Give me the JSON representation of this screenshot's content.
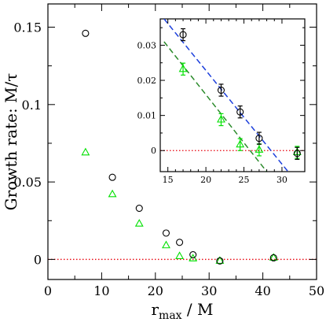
{
  "chart_data": [
    {
      "type": "scatter",
      "role": "main",
      "xlabel_main": "r",
      "xlabel_sub": "max",
      "xlabel_suffix": " / M",
      "ylabel": "Growth rate:  M/τ",
      "xlim": [
        0,
        50
      ],
      "ylim": [
        -0.013,
        0.165
      ],
      "x_ticks": [
        0,
        10,
        20,
        30,
        40,
        50
      ],
      "y_ticks": [
        0,
        0.05,
        0.1,
        0.15
      ],
      "y_tick_labels": [
        "0",
        "0.05",
        "0.1",
        "0.15"
      ],
      "reference_line": {
        "y": 0,
        "color": "#e8000b",
        "style": "dotted"
      },
      "series": [
        {
          "marker": "circle",
          "color": "#000000",
          "points": [
            {
              "x": 7,
              "y": 0.146
            },
            {
              "x": 12,
              "y": 0.053
            },
            {
              "x": 17,
              "y": 0.033
            },
            {
              "x": 22,
              "y": 0.017
            },
            {
              "x": 24.5,
              "y": 0.011
            },
            {
              "x": 27,
              "y": 0.003
            },
            {
              "x": 32,
              "y": -0.001
            },
            {
              "x": 42,
              "y": 0.001
            }
          ]
        },
        {
          "marker": "triangle",
          "color": "#00e000",
          "points": [
            {
              "x": 7,
              "y": 0.069
            },
            {
              "x": 12,
              "y": 0.042
            },
            {
              "x": 17,
              "y": 0.023
            },
            {
              "x": 22,
              "y": 0.009
            },
            {
              "x": 24.5,
              "y": 0.002
            },
            {
              "x": 27,
              "y": 0.0005
            },
            {
              "x": 32,
              "y": -0.001
            },
            {
              "x": 42,
              "y": 0.001
            }
          ]
        }
      ]
    },
    {
      "type": "scatter",
      "role": "inset",
      "xlim": [
        14,
        33
      ],
      "ylim": [
        -0.006,
        0.0375
      ],
      "x_ticks": [
        15,
        20,
        25,
        30
      ],
      "y_ticks": [
        0,
        0.01,
        0.02,
        0.03
      ],
      "y_tick_labels": [
        "0",
        "0.01",
        "0.02",
        "0.03"
      ],
      "reference_line": {
        "y": 0,
        "color": "#e8000b",
        "style": "dotted"
      },
      "series": [
        {
          "marker": "circle",
          "color": "#000000",
          "error_bars": true,
          "points": [
            {
              "x": 17,
              "y": 0.033,
              "err": 0.0017
            },
            {
              "x": 22,
              "y": 0.0172,
              "err": 0.0017
            },
            {
              "x": 24.5,
              "y": 0.011,
              "err": 0.0017
            },
            {
              "x": 27,
              "y": 0.0035,
              "err": 0.0017
            },
            {
              "x": 32,
              "y": -0.0008,
              "err": 0.0017
            }
          ],
          "fit_line": {
            "color": "#1c3fdc",
            "style": "dashed",
            "x": [
              14.5,
              30.8
            ],
            "y": [
              0.0375,
              -0.006
            ]
          }
        },
        {
          "marker": "triangle",
          "color": "#00e000",
          "error_bars": true,
          "points": [
            {
              "x": 17,
              "y": 0.0232,
              "err": 0.0017
            },
            {
              "x": 22,
              "y": 0.0088,
              "err": 0.0017
            },
            {
              "x": 24.5,
              "y": 0.0017,
              "err": 0.0017
            },
            {
              "x": 27,
              "y": 0.0002,
              "err": 0.0017
            },
            {
              "x": 32,
              "y": -0.0005,
              "err": 0.0017
            }
          ],
          "fit_line": {
            "color": "#2a8a2a",
            "style": "dashed",
            "x": [
              14.5,
              28.0
            ],
            "y": [
              0.031,
              -0.006
            ]
          }
        }
      ]
    }
  ]
}
